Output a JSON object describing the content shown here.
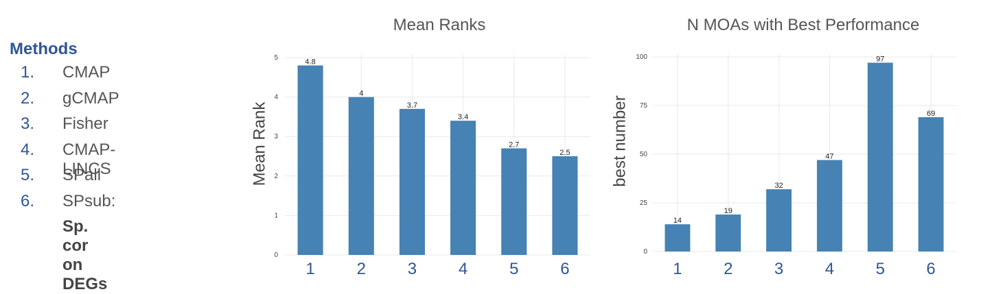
{
  "legend": {
    "title": "Methods",
    "items": [
      {
        "num": "1.",
        "label": "CMAP"
      },
      {
        "num": "2.",
        "label": "gCMAP"
      },
      {
        "num": "3.",
        "label": "Fisher"
      },
      {
        "num": "4.",
        "label": "CMAP-LINCS"
      },
      {
        "num": "5.",
        "label": "SPall"
      },
      {
        "num": "6.",
        "label": "SPsub:"
      }
    ],
    "sub_note": "Sp. cor on DEGs"
  },
  "colors": {
    "bar": "#4682b4",
    "grid": "#e8e8e8",
    "title": "#555555",
    "accent": "#2f5597"
  },
  "chart_data": [
    {
      "type": "bar",
      "title": "Mean Ranks",
      "xlabel": "",
      "ylabel": "Mean Rank",
      "categories": [
        "1",
        "2",
        "3",
        "4",
        "5",
        "6"
      ],
      "values": [
        4.8,
        4,
        3.7,
        3.4,
        2.7,
        2.5
      ],
      "value_labels": [
        "4.8",
        "4",
        "3.7",
        "3.4",
        "2.7",
        "2.5"
      ],
      "ylim": [
        0,
        5
      ],
      "yticks": [
        0,
        1,
        2,
        3,
        4,
        5
      ],
      "grid": true
    },
    {
      "type": "bar",
      "title": "N MOAs with Best Performance",
      "xlabel": "",
      "ylabel": "best number",
      "categories": [
        "1",
        "2",
        "3",
        "4",
        "5",
        "6"
      ],
      "values": [
        14,
        19,
        32,
        47,
        97,
        69
      ],
      "value_labels": [
        "14",
        "19",
        "32",
        "47",
        "97",
        "69"
      ],
      "ylim": [
        0,
        100
      ],
      "yticks": [
        0,
        25,
        50,
        75,
        100
      ],
      "grid": true
    }
  ]
}
